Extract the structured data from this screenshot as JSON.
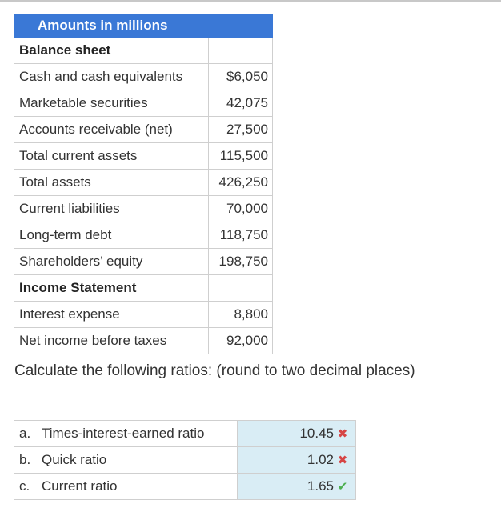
{
  "balance": {
    "header": "Amounts in millions",
    "section1": "Balance sheet",
    "rows1": [
      {
        "label": "Cash and cash equivalents",
        "value": "$6,050"
      },
      {
        "label": "Marketable securities",
        "value": "42,075"
      },
      {
        "label": "Accounts receivable (net)",
        "value": "27,500"
      },
      {
        "label": "Total current assets",
        "value": "115,500"
      },
      {
        "label": "Total assets",
        "value": "426,250"
      },
      {
        "label": "Current liabilities",
        "value": "70,000"
      },
      {
        "label": "Long-term debt",
        "value": "118,750"
      },
      {
        "label": "Shareholders’ equity",
        "value": "198,750"
      }
    ],
    "section2": "Income Statement",
    "rows2": [
      {
        "label": "Interest expense",
        "value": "8,800"
      },
      {
        "label": "Net income before taxes",
        "value": "92,000"
      }
    ]
  },
  "prompt": "Calculate the following ratios: (round to two decimal places)",
  "ratios": [
    {
      "letter": "a.",
      "label": "Times-interest-earned ratio",
      "answer": "10.45",
      "status_icon": "cross-icon",
      "mark": "✖"
    },
    {
      "letter": "b.",
      "label": "Quick ratio",
      "answer": "1.02",
      "status_icon": "cross-icon",
      "mark": "✖"
    },
    {
      "letter": "c.",
      "label": "Current ratio",
      "answer": "1.65",
      "status_icon": "check-icon",
      "mark": "✔"
    }
  ]
}
